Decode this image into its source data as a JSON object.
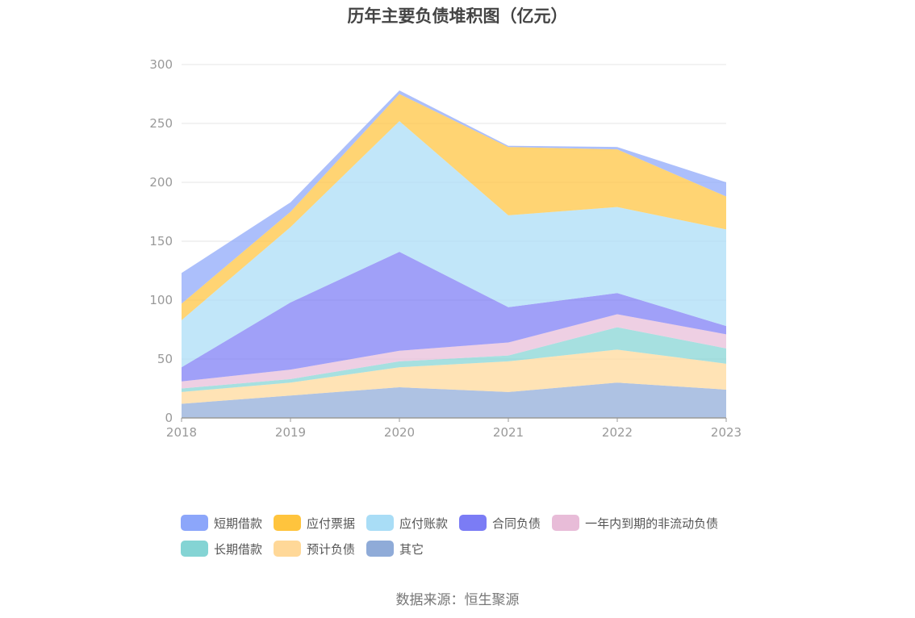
{
  "title": "历年主要负债堆积图（亿元）",
  "source": "数据来源：恒生聚源",
  "chart_data": {
    "type": "area",
    "stacked": true,
    "categories": [
      "2018",
      "2019",
      "2020",
      "2021",
      "2022",
      "2023"
    ],
    "ylim": [
      0,
      300
    ],
    "yticks": [
      0,
      50,
      100,
      150,
      200,
      250,
      300
    ],
    "grid": true,
    "legend_position": "bottom",
    "series": [
      {
        "name": "其它",
        "color": "#8FABD8",
        "values": [
          12,
          19,
          26,
          22,
          30,
          24
        ]
      },
      {
        "name": "预计负债",
        "color": "#FFD898",
        "values": [
          10,
          11,
          17,
          26,
          28,
          22
        ]
      },
      {
        "name": "长期借款",
        "color": "#84D4D4",
        "values": [
          3,
          3,
          5,
          5,
          19,
          13
        ]
      },
      {
        "name": "一年内到期的非流动负债",
        "color": "#E8BCD8",
        "values": [
          6,
          8,
          9,
          11,
          11,
          12
        ]
      },
      {
        "name": "合同负债",
        "color": "#7B7CF5",
        "values": [
          12,
          57,
          84,
          30,
          18,
          7
        ]
      },
      {
        "name": "应付账款",
        "color": "#A9DDF6",
        "values": [
          40,
          64,
          111,
          78,
          73,
          82
        ]
      },
      {
        "name": "应付票据",
        "color": "#FFC43D",
        "values": [
          14,
          13,
          23,
          58,
          49,
          28
        ]
      },
      {
        "name": "短期借款",
        "color": "#8CA6FA",
        "values": [
          26,
          8,
          3,
          1,
          2,
          12
        ]
      }
    ]
  },
  "legend": [
    {
      "name": "短期借款",
      "color": "#8CA6FA"
    },
    {
      "name": "应付票据",
      "color": "#FFC43D"
    },
    {
      "name": "应付账款",
      "color": "#A9DDF6"
    },
    {
      "name": "合同负债",
      "color": "#7B7CF5"
    },
    {
      "name": "一年内到期的非流动负债",
      "color": "#E8BCD8"
    },
    {
      "name": "长期借款",
      "color": "#84D4D4"
    },
    {
      "name": "预计负债",
      "color": "#FFD898"
    },
    {
      "name": "其它",
      "color": "#8FABD8"
    }
  ]
}
